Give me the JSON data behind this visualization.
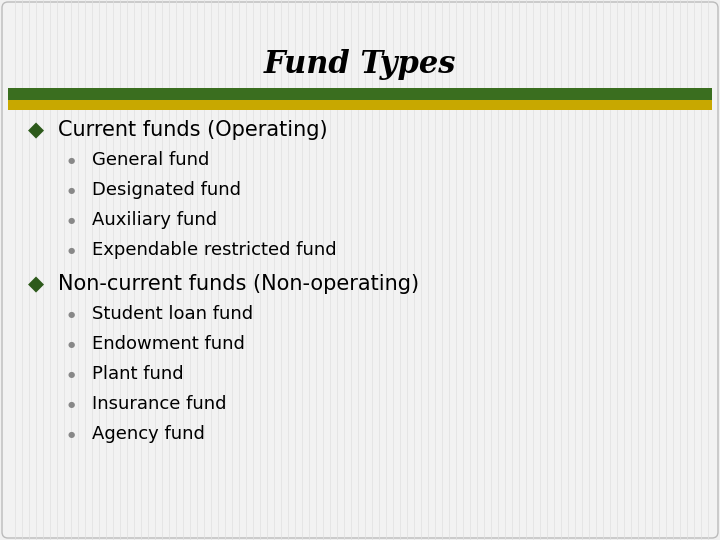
{
  "title": "Fund Types",
  "title_fontstyle": "italic",
  "title_fontsize": 22,
  "title_fontweight": "bold",
  "background_color": "#e8e8e8",
  "slide_bg": "#f0f0f0",
  "header_bar_green": "#3a6e1f",
  "header_bar_gold": "#c8a800",
  "bullet1_color": "#2d5a1b",
  "bullet2_color": "#888888",
  "text_color": "#000000",
  "level1_items": [
    {
      "text": "Current funds (Operating)",
      "sub_items": [
        "General fund",
        "Designated fund",
        "Auxiliary fund",
        "Expendable restricted fund"
      ]
    },
    {
      "text": "Non-current funds (Non-operating)",
      "sub_items": [
        "Student loan fund",
        "Endowment fund",
        "Plant fund",
        "Insurance fund",
        "Agency fund"
      ]
    }
  ],
  "level1_fontsize": 15,
  "level2_fontsize": 13,
  "diamond_marker": "◆",
  "circle_marker": "●"
}
